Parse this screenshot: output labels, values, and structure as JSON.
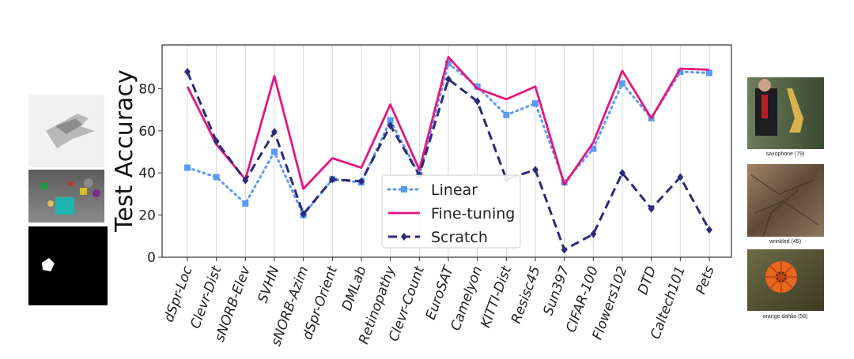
{
  "chart_data": {
    "type": "line",
    "title": "",
    "xlabel": "",
    "ylabel": "Test Accuracy",
    "ylim": [
      0,
      100
    ],
    "yticks": [
      0,
      20,
      40,
      60,
      80
    ],
    "grid": "vertical",
    "legend_position": "bottom-center",
    "categories": [
      "dSpr-Loc",
      "Clevr-Dist",
      "sNORB-Elev",
      "SVHN",
      "sNORB-Azim",
      "dSpr-Orient",
      "DMLab",
      "Retinopathy",
      "Clevr-Count",
      "EuroSAT",
      "Camelyon",
      "KITTI-Dist",
      "Resisc45",
      "Sun397",
      "CIFAR-100",
      "Flowers102",
      "DTD",
      "Caltech101",
      "Pets"
    ],
    "series": [
      {
        "name": "Linear",
        "color": "#5b9bf5",
        "style": "dotted",
        "marker": "square",
        "values": [
          42.5,
          38,
          25.5,
          50,
          20,
          37,
          35.5,
          65,
          39,
          92,
          81,
          67.5,
          73,
          35.5,
          51.5,
          82.5,
          66,
          88,
          87.5
        ]
      },
      {
        "name": "Fine-tuning",
        "color": "#e8157f",
        "style": "solid",
        "marker": "none",
        "values": [
          81,
          53.5,
          37,
          86,
          32.5,
          47,
          42.5,
          72.5,
          41.5,
          95,
          80,
          75,
          81,
          34.5,
          54.5,
          88.5,
          66,
          89.5,
          89
        ]
      },
      {
        "name": "Scratch",
        "color": "#2c2a7a",
        "style": "dashed",
        "marker": "diamond",
        "values": [
          88,
          55,
          36.5,
          59.5,
          20.5,
          37,
          36,
          62.5,
          39,
          84.5,
          74,
          37,
          41.5,
          3.5,
          11,
          40,
          23,
          38,
          13
        ]
      }
    ]
  },
  "side_images": [
    {
      "icon": "airplane-rendering"
    },
    {
      "icon": "clevr-objects-scene"
    },
    {
      "icon": "dsprites-square-mask"
    },
    {
      "icon": "saxophone-photo",
      "caption": "saxophone (79)"
    },
    {
      "icon": "wrinkled-texture",
      "caption": "wrinkled (45)"
    },
    {
      "icon": "orange-dahlia-photo",
      "caption": "orange dahlia (58)"
    }
  ]
}
